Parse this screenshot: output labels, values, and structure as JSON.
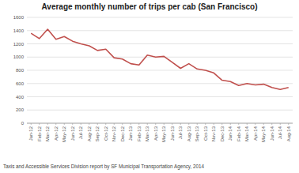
{
  "chart_data": {
    "type": "line",
    "title": "Average monthly number of trips per cab (San Francisco)",
    "categories": [
      "Jan-12",
      "Feb-12",
      "Mar-12",
      "Apr-12",
      "May-12",
      "Jun-12",
      "Jul-12",
      "Aug-12",
      "Sep-12",
      "Oct-12",
      "Nov-12",
      "Dec-12",
      "Jan-13",
      "Feb-13",
      "Mar-13",
      "Apr-13",
      "May-13",
      "Jun-13",
      "Jul-13",
      "Aug-13",
      "Sep-13",
      "Oct-13",
      "Nov-13",
      "Dec-13",
      "Jan-14",
      "Feb-14",
      "Mar-14",
      "Apr-14",
      "May-14",
      "Jun-14",
      "Jul-14",
      "Aug-14"
    ],
    "values": [
      1360,
      1280,
      1420,
      1270,
      1310,
      1240,
      1200,
      1170,
      1100,
      1120,
      990,
      970,
      900,
      880,
      1030,
      1000,
      1010,
      920,
      830,
      900,
      820,
      800,
      760,
      650,
      630,
      570,
      600,
      580,
      590,
      540,
      510,
      540
    ],
    "color": "#c0504d",
    "ylim": [
      0,
      1600
    ],
    "yticks": [
      0,
      200,
      400,
      600,
      800,
      1000,
      1200,
      1400,
      1600
    ],
    "grid": true,
    "source": "Taxis and Accessible Services Division report by SF Municipal Transportation Agency, 2014"
  }
}
